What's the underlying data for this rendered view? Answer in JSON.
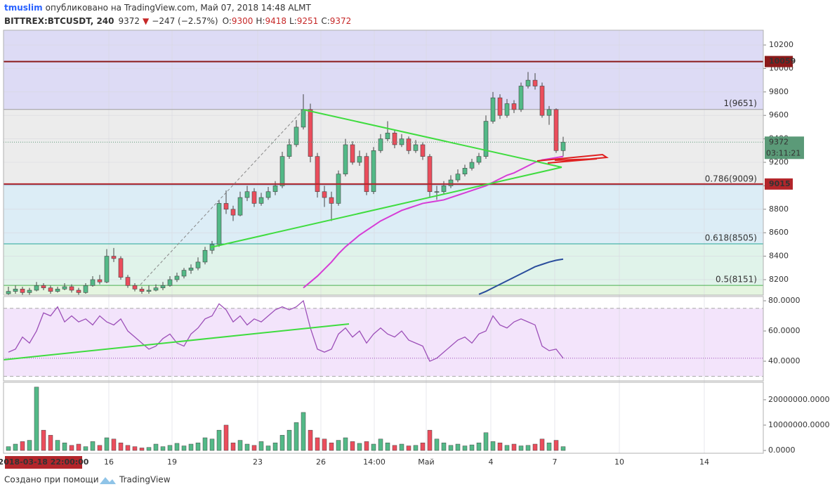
{
  "header": {
    "user": "tmuslim",
    "published": "опубликовано на TradingView.com, Май 07, 2018 14:48 ALMT",
    "symbol": "BITTREX:BTCUSDT, 240",
    "last": "9372",
    "arrow": "▼",
    "change": "−247 (−2.57%)",
    "o_label": "O:",
    "o": "9300",
    "h_label": "H:",
    "h": "9418",
    "l_label": "L:",
    "l": "9251",
    "c_label": "C:",
    "c": "9372"
  },
  "chart_data": {
    "type": "candlestick",
    "ohlc": [
      [
        8080,
        8140,
        8060,
        8100
      ],
      [
        8100,
        8150,
        8080,
        8120
      ],
      [
        8120,
        8140,
        8070,
        8090
      ],
      [
        8090,
        8130,
        8070,
        8110
      ],
      [
        8110,
        8180,
        8100,
        8150
      ],
      [
        8150,
        8170,
        8110,
        8130
      ],
      [
        8130,
        8150,
        8080,
        8100
      ],
      [
        8100,
        8140,
        8090,
        8120
      ],
      [
        8120,
        8170,
        8110,
        8140
      ],
      [
        8140,
        8160,
        8090,
        8110
      ],
      [
        8110,
        8130,
        8070,
        8090
      ],
      [
        8090,
        8170,
        8080,
        8150
      ],
      [
        8150,
        8230,
        8140,
        8200
      ],
      [
        8200,
        8240,
        8160,
        8180
      ],
      [
        8180,
        8460,
        8170,
        8400
      ],
      [
        8400,
        8470,
        8350,
        8380
      ],
      [
        8380,
        8400,
        8200,
        8220
      ],
      [
        8220,
        8240,
        8130,
        8150
      ],
      [
        8150,
        8170,
        8100,
        8120
      ],
      [
        8120,
        8140,
        8080,
        8100
      ],
      [
        8100,
        8150,
        8080,
        8110
      ],
      [
        8110,
        8160,
        8100,
        8130
      ],
      [
        8130,
        8180,
        8110,
        8150
      ],
      [
        8150,
        8230,
        8140,
        8200
      ],
      [
        8200,
        8260,
        8180,
        8230
      ],
      [
        8230,
        8300,
        8210,
        8280
      ],
      [
        8280,
        8330,
        8250,
        8300
      ],
      [
        8300,
        8390,
        8280,
        8350
      ],
      [
        8350,
        8480,
        8330,
        8450
      ],
      [
        8450,
        8530,
        8420,
        8500
      ],
      [
        8500,
        8880,
        8480,
        8850
      ],
      [
        8850,
        8960,
        8760,
        8800
      ],
      [
        8800,
        8830,
        8700,
        8750
      ],
      [
        8750,
        8950,
        8740,
        8900
      ],
      [
        8900,
        9000,
        8870,
        8950
      ],
      [
        8950,
        8980,
        8820,
        8850
      ],
      [
        8850,
        8940,
        8830,
        8900
      ],
      [
        8900,
        8990,
        8880,
        8950
      ],
      [
        8950,
        9040,
        8920,
        9000
      ],
      [
        9000,
        9290,
        8980,
        9250
      ],
      [
        9250,
        9400,
        9230,
        9350
      ],
      [
        9350,
        9560,
        9330,
        9500
      ],
      [
        9500,
        9780,
        9480,
        9650
      ],
      [
        9650,
        9700,
        9200,
        9250
      ],
      [
        9250,
        9280,
        8900,
        8950
      ],
      [
        8950,
        9000,
        8820,
        8900
      ],
      [
        8900,
        8950,
        8700,
        8850
      ],
      [
        8850,
        9130,
        8830,
        9100
      ],
      [
        9100,
        9400,
        9080,
        9350
      ],
      [
        9350,
        9380,
        9180,
        9200
      ],
      [
        9200,
        9300,
        9170,
        9250
      ],
      [
        9250,
        9280,
        8920,
        8950
      ],
      [
        8950,
        9330,
        8930,
        9300
      ],
      [
        9300,
        9440,
        9280,
        9400
      ],
      [
        9400,
        9550,
        9380,
        9450
      ],
      [
        9450,
        9480,
        9320,
        9350
      ],
      [
        9350,
        9440,
        9330,
        9400
      ],
      [
        9400,
        9420,
        9270,
        9300
      ],
      [
        9300,
        9390,
        9280,
        9350
      ],
      [
        9350,
        9370,
        9220,
        9250
      ],
      [
        9250,
        9270,
        8900,
        8950
      ],
      [
        8950,
        9000,
        8880,
        8950
      ],
      [
        8950,
        9040,
        8930,
        9000
      ],
      [
        9000,
        9090,
        8980,
        9050
      ],
      [
        9050,
        9140,
        9030,
        9100
      ],
      [
        9100,
        9180,
        9080,
        9150
      ],
      [
        9150,
        9230,
        9130,
        9200
      ],
      [
        9200,
        9280,
        9180,
        9250
      ],
      [
        9250,
        9600,
        9230,
        9550
      ],
      [
        9550,
        9800,
        9530,
        9750
      ],
      [
        9750,
        9780,
        9570,
        9600
      ],
      [
        9600,
        9740,
        9580,
        9700
      ],
      [
        9700,
        9730,
        9620,
        9650
      ],
      [
        9650,
        9880,
        9630,
        9850
      ],
      [
        9850,
        9970,
        9830,
        9900
      ],
      [
        9900,
        9960,
        9820,
        9850
      ],
      [
        9850,
        9880,
        9580,
        9600
      ],
      [
        9600,
        9680,
        9520,
        9650
      ],
      [
        9650,
        9660,
        9280,
        9300
      ],
      [
        9300,
        9418,
        9251,
        9372
      ]
    ],
    "up_color": "#53b987",
    "down_color": "#eb4d5c",
    "ylim": [
      8068,
      10326
    ],
    "yticks": [
      8200,
      8400,
      8600,
      8800,
      9000,
      9200,
      9400,
      9600,
      9800,
      10000,
      10200
    ],
    "grid": true,
    "x_labels": [
      "16",
      "19",
      "23",
      "26",
      "14:00",
      "Май",
      "4",
      "7",
      "10",
      "14"
    ],
    "crosshair_label": "2018-03-18 22:00:00",
    "top_zone_color": "#dddbf5",
    "fib_levels": [
      {
        "value": 9651,
        "label": "1(9651)",
        "color": "#9e9e9e",
        "zone_color": "#ececec"
      },
      {
        "value": 9009,
        "label": "0.786(9009)",
        "color": "#5a9bc8",
        "zone_color": "#dcedf6"
      },
      {
        "value": 8505,
        "label": "0.618(8505)",
        "color": "#26a69a",
        "zone_color": "#e0f3ea"
      },
      {
        "value": 8151,
        "label": "0.5(8151)",
        "color": "#4caf50",
        "zone_color": "#e5f5e0"
      }
    ],
    "price_lines": [
      {
        "value": 10059,
        "label": "10059",
        "color": "#8b1a1a"
      },
      {
        "value": 9015,
        "label": "9015",
        "color": "#b3262b"
      }
    ],
    "last_price": {
      "value": 9372,
      "label": "9372",
      "countdown": "03:11:21",
      "color": "#5b9a78"
    },
    "moving_averages": [
      {
        "color": "#d63cd6",
        "values": [
          null,
          null,
          null,
          null,
          null,
          null,
          null,
          null,
          null,
          null,
          null,
          null,
          null,
          null,
          null,
          null,
          null,
          null,
          null,
          null,
          null,
          null,
          null,
          null,
          null,
          null,
          null,
          null,
          null,
          null,
          null,
          null,
          null,
          null,
          null,
          null,
          null,
          null,
          null,
          null,
          null,
          null,
          8130,
          8180,
          8230,
          8290,
          8350,
          8420,
          8480,
          8530,
          8580,
          8620,
          8660,
          8700,
          8730,
          8760,
          8790,
          8810,
          8830,
          8850,
          8860,
          8870,
          8880,
          8900,
          8920,
          8940,
          8960,
          8980,
          9000,
          9030,
          9060,
          9090,
          9110,
          9140,
          9170,
          9200,
          9220,
          9230,
          9240,
          9250
        ]
      },
      {
        "color": "#2a4d9c",
        "values": [
          null,
          null,
          null,
          null,
          null,
          null,
          null,
          null,
          null,
          null,
          null,
          null,
          null,
          null,
          null,
          null,
          null,
          null,
          null,
          null,
          null,
          null,
          null,
          null,
          null,
          null,
          null,
          null,
          null,
          null,
          null,
          null,
          null,
          null,
          null,
          null,
          null,
          null,
          null,
          null,
          null,
          null,
          null,
          null,
          null,
          null,
          null,
          null,
          null,
          null,
          null,
          null,
          null,
          null,
          null,
          null,
          null,
          null,
          null,
          null,
          null,
          null,
          null,
          null,
          null,
          null,
          null,
          8075,
          8100,
          8130,
          8160,
          8190,
          8220,
          8250,
          8280,
          8310,
          8330,
          8350,
          8365,
          8375
        ]
      }
    ],
    "rsi": {
      "color": "#9c4fb8",
      "values": [
        46,
        48,
        56,
        52,
        60,
        72,
        70,
        76,
        66,
        70,
        66,
        68,
        64,
        70,
        66,
        64,
        68,
        60,
        56,
        52,
        48,
        50,
        55,
        58,
        52,
        50,
        58,
        62,
        68,
        70,
        78,
        74,
        66,
        70,
        64,
        68,
        66,
        70,
        74,
        76,
        74,
        76,
        80,
        62,
        48,
        46,
        48,
        58,
        62,
        56,
        60,
        52,
        58,
        62,
        58,
        56,
        60,
        54,
        52,
        50,
        40,
        42,
        46,
        50,
        54,
        56,
        52,
        58,
        60,
        70,
        64,
        62,
        66,
        68,
        66,
        64,
        50,
        47,
        48,
        42
      ],
      "ylim": [
        27,
        82.8
      ],
      "yticks": [
        {
          "value": 80,
          "label": "80.0000"
        },
        {
          "value": 60,
          "label": "60.0000"
        },
        {
          "value": 40,
          "label": "40.0000"
        }
      ],
      "bands": [
        75,
        30
      ],
      "level": 42
    },
    "volume": {
      "values": [
        1500000,
        2500000,
        3500000,
        4000000,
        25000000,
        8000000,
        6000000,
        4000000,
        3000000,
        2000000,
        2500000,
        1500000,
        3500000,
        2000000,
        5000000,
        4500000,
        3000000,
        2000000,
        1500000,
        1000000,
        1200000,
        2500000,
        1500000,
        2000000,
        2800000,
        1800000,
        2500000,
        3000000,
        5000000,
        4500000,
        8000000,
        10000000,
        3000000,
        4000000,
        2500000,
        2000000,
        3500000,
        1800000,
        3000000,
        6000000,
        8000000,
        11000000,
        15000000,
        8000000,
        5000000,
        4500000,
        3000000,
        4000000,
        5000000,
        3500000,
        2800000,
        3500000,
        2500000,
        4500000,
        3000000,
        2000000,
        2500000,
        1800000,
        2000000,
        3000000,
        8000000,
        4500000,
        3000000,
        2000000,
        2500000,
        1800000,
        2200000,
        3000000,
        7000000,
        3500000,
        3000000,
        2000000,
        2500000,
        1800000,
        2000000,
        2500000,
        4500000,
        3000000,
        4000000,
        1500000
      ],
      "ylim": [
        -1100000,
        26900000
      ],
      "yticks": [
        {
          "value": 0,
          "label": "0.0000"
        },
        {
          "value": 10000000,
          "label": "10000000.0000"
        },
        {
          "value": 20000000,
          "label": "20000000.0000"
        }
      ]
    }
  },
  "footer": {
    "text": "Создано при помощи",
    "brand": "TradingView"
  }
}
